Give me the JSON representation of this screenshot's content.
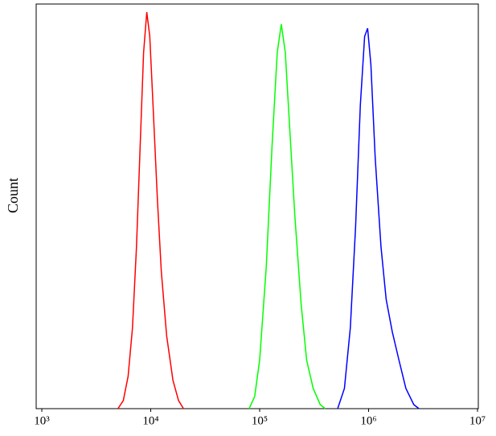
{
  "chart_data": {
    "type": "line",
    "y_label": "Count",
    "x_log": true,
    "xlim": [
      1000,
      10000000
    ],
    "xticks": [
      {
        "value": 1000,
        "label": "10³"
      },
      {
        "value": 10000,
        "label": "10⁴"
      },
      {
        "value": 100000,
        "label": "10⁵"
      },
      {
        "value": 1000000,
        "label": "10⁶"
      },
      {
        "value": 10000000,
        "label": "10⁷"
      }
    ],
    "ylim": [
      0,
      100
    ],
    "series": [
      {
        "color": "#ff0000",
        "x": [
          5000,
          5600,
          6200,
          6800,
          7400,
          8000,
          8600,
          9200,
          9800,
          10500,
          11500,
          12500,
          14000,
          16000,
          18000,
          20000
        ],
        "values": [
          0,
          2,
          8,
          20,
          40,
          65,
          88,
          98,
          92,
          75,
          52,
          34,
          18,
          7,
          2,
          0
        ]
      },
      {
        "color": "#00ff00",
        "x": [
          80000,
          90000,
          100000,
          115000,
          130000,
          145000,
          158000,
          172000,
          190000,
          210000,
          240000,
          270000,
          310000,
          360000,
          400000
        ],
        "values": [
          0,
          3,
          12,
          35,
          65,
          88,
          95,
          88,
          68,
          48,
          26,
          12,
          5,
          1,
          0
        ]
      },
      {
        "color": "#0000ff",
        "x": [
          520000,
          600000,
          680000,
          760000,
          840000,
          920000,
          980000,
          1050000,
          1150000,
          1300000,
          1450000,
          1650000,
          1900000,
          2200000,
          2600000,
          2900000
        ],
        "values": [
          0,
          5,
          20,
          45,
          75,
          92,
          94,
          85,
          62,
          40,
          27,
          19,
          12,
          5,
          1,
          0
        ]
      }
    ]
  }
}
